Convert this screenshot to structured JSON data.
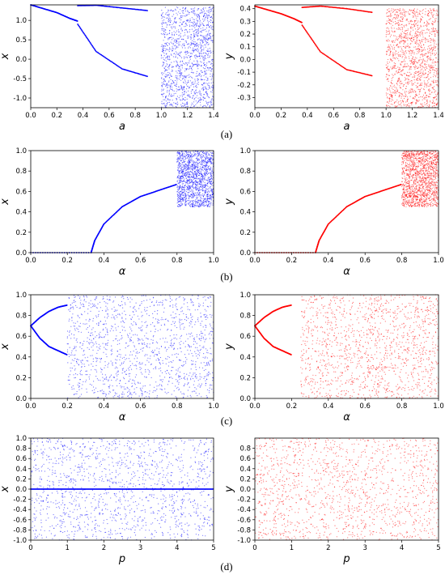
{
  "colors": {
    "blue": "#0000ff",
    "red": "#ff0000"
  },
  "chart_data": [
    {
      "type": "scatter",
      "panel": "(a)",
      "side": "left",
      "color": "blue",
      "xlabel": "a",
      "ylabel": "x",
      "xlim": [
        0.0,
        1.4
      ],
      "ylim": [
        -1.25,
        1.4
      ],
      "xticks": [
        "0.0",
        "0.2",
        "0.4",
        "0.6",
        "0.8",
        "1.0",
        "1.2",
        "1.4"
      ],
      "yticks": [
        "-1.0",
        "-0.5",
        "0.0",
        "0.5",
        "1.0"
      ],
      "ytick_values": [
        -1.0,
        -0.5,
        0.0,
        0.5,
        1.0
      ],
      "series": [
        {
          "x": [
            0.0,
            0.1,
            0.2,
            0.3,
            0.36
          ],
          "y": [
            1.4,
            1.3,
            1.2,
            1.05,
            0.98
          ]
        },
        {
          "x": [
            0.36,
            0.5,
            0.7,
            0.9
          ],
          "y": [
            1.38,
            1.39,
            1.32,
            1.25
          ]
        },
        {
          "x": [
            0.36,
            0.5,
            0.7,
            0.9
          ],
          "y": [
            0.9,
            0.2,
            -0.25,
            -0.45
          ]
        }
      ],
      "chaos_x": [
        1.0,
        1.4
      ],
      "chaos_y": [
        -1.25,
        1.35
      ]
    },
    {
      "type": "scatter",
      "panel": "(a)",
      "side": "right",
      "color": "red",
      "xlabel": "a",
      "ylabel": "y",
      "xlim": [
        0.0,
        1.4
      ],
      "ylim": [
        -0.38,
        0.43
      ],
      "xticks": [
        "0.0",
        "0.2",
        "0.4",
        "0.6",
        "0.8",
        "1.0",
        "1.2",
        "1.4"
      ],
      "yticks": [
        "-0.3",
        "-0.2",
        "-0.1",
        "0.0",
        "0.1",
        "0.2",
        "0.3",
        "0.4"
      ],
      "ytick_values": [
        -0.3,
        -0.2,
        -0.1,
        0.0,
        0.1,
        0.2,
        0.3,
        0.4
      ],
      "series": [
        {
          "x": [
            0.0,
            0.1,
            0.2,
            0.3,
            0.36
          ],
          "y": [
            0.42,
            0.39,
            0.36,
            0.32,
            0.29
          ]
        },
        {
          "x": [
            0.36,
            0.5,
            0.7,
            0.9
          ],
          "y": [
            0.41,
            0.42,
            0.4,
            0.37
          ]
        },
        {
          "x": [
            0.36,
            0.5,
            0.7,
            0.9
          ],
          "y": [
            0.27,
            0.06,
            -0.08,
            -0.13
          ]
        }
      ],
      "chaos_x": [
        1.0,
        1.4
      ],
      "chaos_y": [
        -0.38,
        0.4
      ]
    },
    {
      "type": "scatter",
      "panel": "(b)",
      "side": "left",
      "color": "blue",
      "xlabel": "α",
      "ylabel": "x",
      "xlim": [
        0.0,
        1.0
      ],
      "ylim": [
        0.0,
        1.0
      ],
      "xticks": [
        "0.0",
        "0.2",
        "0.4",
        "0.6",
        "0.8",
        "1.0"
      ],
      "yticks": [
        "0.0",
        "0.2",
        "0.4",
        "0.6",
        "0.8",
        "1.0"
      ],
      "ytick_values": [
        0.0,
        0.2,
        0.4,
        0.6,
        0.8,
        1.0
      ],
      "series": [
        {
          "x": [
            0.0,
            0.33
          ],
          "y": [
            0.0,
            0.0
          ]
        },
        {
          "x": [
            0.33,
            0.35,
            0.4,
            0.5,
            0.6,
            0.7,
            0.8
          ],
          "y": [
            0.0,
            0.12,
            0.28,
            0.45,
            0.55,
            0.61,
            0.67
          ]
        }
      ],
      "chaos_x": [
        0.8,
        1.0
      ],
      "chaos_y": [
        0.45,
        1.0
      ]
    },
    {
      "type": "scatter",
      "panel": "(b)",
      "side": "right",
      "color": "red",
      "xlabel": "α",
      "ylabel": "y",
      "xlim": [
        0.0,
        1.0
      ],
      "ylim": [
        0.0,
        1.0
      ],
      "xticks": [
        "0.0",
        "0.2",
        "0.4",
        "0.6",
        "0.8",
        "1.0"
      ],
      "yticks": [
        "0.0",
        "0.2",
        "0.4",
        "0.6",
        "0.8",
        "1.0"
      ],
      "ytick_values": [
        0.0,
        0.2,
        0.4,
        0.6,
        0.8,
        1.0
      ],
      "series": [
        {
          "x": [
            0.0,
            0.33
          ],
          "y": [
            0.0,
            0.0
          ]
        },
        {
          "x": [
            0.33,
            0.35,
            0.4,
            0.5,
            0.6,
            0.7,
            0.8
          ],
          "y": [
            0.0,
            0.12,
            0.28,
            0.45,
            0.55,
            0.61,
            0.67
          ]
        }
      ],
      "chaos_x": [
        0.8,
        1.0
      ],
      "chaos_y": [
        0.45,
        1.0
      ]
    },
    {
      "type": "scatter",
      "panel": "(c)",
      "side": "left",
      "color": "blue",
      "xlabel": "α",
      "ylabel": "x",
      "xlim": [
        0.0,
        1.0
      ],
      "ylim": [
        0.0,
        1.0
      ],
      "xticks": [
        "0.0",
        "0.2",
        "0.4",
        "0.6",
        "0.8",
        "1.0"
      ],
      "yticks": [
        "0.0",
        "0.2",
        "0.4",
        "0.6",
        "0.8",
        "1.0"
      ],
      "ytick_values": [
        0.0,
        0.2,
        0.4,
        0.6,
        0.8,
        1.0
      ],
      "series": [
        {
          "x": [
            0.0,
            0.05,
            0.1,
            0.15,
            0.2
          ],
          "y": [
            0.7,
            0.78,
            0.84,
            0.88,
            0.9
          ]
        },
        {
          "x": [
            0.0,
            0.05,
            0.1,
            0.15,
            0.2
          ],
          "y": [
            0.7,
            0.58,
            0.5,
            0.46,
            0.42
          ]
        }
      ],
      "chaos_x": [
        0.2,
        1.0
      ],
      "chaos_y": [
        0.0,
        1.0
      ]
    },
    {
      "type": "scatter",
      "panel": "(c)",
      "side": "right",
      "color": "red",
      "xlabel": "α",
      "ylabel": "y",
      "xlim": [
        0.0,
        1.0
      ],
      "ylim": [
        0.0,
        1.0
      ],
      "xticks": [
        "0.0",
        "0.2",
        "0.4",
        "0.6",
        "0.8",
        "1.0"
      ],
      "yticks": [
        "0.0",
        "0.2",
        "0.4",
        "0.6",
        "0.8",
        "1.0"
      ],
      "ytick_values": [
        0.0,
        0.2,
        0.4,
        0.6,
        0.8,
        1.0
      ],
      "series": [
        {
          "x": [
            0.0,
            0.05,
            0.1,
            0.15,
            0.2
          ],
          "y": [
            0.7,
            0.78,
            0.84,
            0.88,
            0.9
          ]
        },
        {
          "x": [
            0.0,
            0.05,
            0.1,
            0.15,
            0.2
          ],
          "y": [
            0.7,
            0.58,
            0.5,
            0.46,
            0.42
          ]
        }
      ],
      "chaos_x": [
        0.25,
        1.0
      ],
      "chaos_y": [
        0.0,
        1.0
      ]
    },
    {
      "type": "scatter",
      "panel": "(d)",
      "side": "left",
      "color": "blue",
      "xlabel": "p",
      "ylabel": "x",
      "xlim": [
        0,
        5
      ],
      "ylim": [
        -1.0,
        1.0
      ],
      "xticks": [
        "0",
        "1",
        "2",
        "3",
        "4",
        "5"
      ],
      "yticks": [
        "-1.0",
        "-0.8",
        "-0.6",
        "-0.4",
        "-0.2",
        "0.0",
        "0.2",
        "0.4",
        "0.6",
        "0.8",
        "1.0"
      ],
      "ytick_values": [
        -1.0,
        -0.8,
        -0.6,
        -0.4,
        -0.2,
        0.0,
        0.2,
        0.4,
        0.6,
        0.8,
        1.0
      ],
      "series": [
        {
          "x": [
            0.0,
            0.5,
            1.0,
            1.5,
            2.0,
            2.5,
            3.0,
            3.5,
            4.0,
            4.5,
            5.0
          ],
          "y": [
            0.0,
            0.0,
            0.0,
            0.0,
            0.0,
            0.0,
            0.0,
            0.0,
            0.0,
            0.0,
            0.0
          ]
        }
      ],
      "chaos_x": [
        0.0,
        5.0
      ],
      "chaos_y": [
        -1.0,
        1.0
      ]
    },
    {
      "type": "scatter",
      "panel": "(d)",
      "side": "right",
      "color": "red",
      "xlabel": "p",
      "ylabel": "y",
      "xlim": [
        0,
        5
      ],
      "ylim": [
        -1.0,
        1.0
      ],
      "xticks": [
        "0",
        "1",
        "2",
        "3",
        "4",
        "5"
      ],
      "yticks": [
        "-1.0",
        "-0.8",
        "-0.6",
        "-0.4",
        "-0.2",
        "0.0",
        "0.2",
        "0.4",
        "0.6",
        "0.8"
      ],
      "ytick_values": [
        -1.0,
        -0.8,
        -0.6,
        -0.4,
        -0.2,
        0.0,
        0.2,
        0.4,
        0.6,
        0.8
      ],
      "series": [],
      "chaos_x": [
        0.0,
        5.0
      ],
      "chaos_y": [
        -1.0,
        1.0
      ]
    }
  ],
  "panel_labels": [
    "(a)",
    "(b)",
    "(c)",
    "(d)"
  ]
}
